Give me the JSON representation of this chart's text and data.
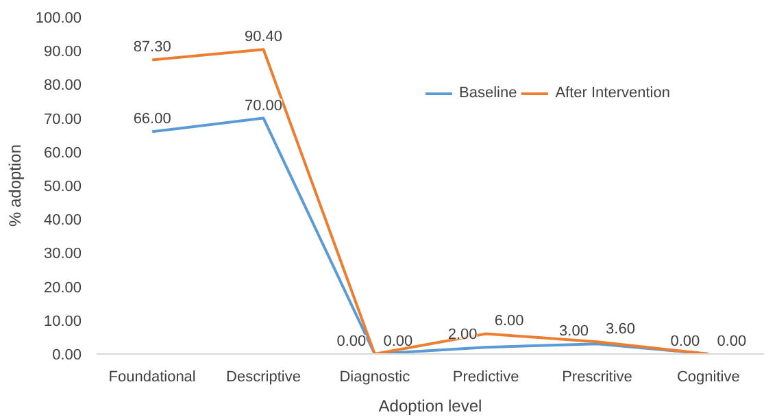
{
  "chart_data": {
    "type": "line",
    "xlabel": "Adoption level",
    "ylabel": "% adoption",
    "categories": [
      "Foundational",
      "Descriptive",
      "Diagnostic",
      "Predictive",
      "Prescritive",
      "Cognitive"
    ],
    "series": [
      {
        "name": "Baseline",
        "color": "#5b9bd5",
        "values": [
          66,
          70,
          0,
          2,
          3,
          0
        ],
        "value_labels": [
          "66.00",
          "70.00",
          "0.00",
          "2.00",
          "3.00",
          "0.00"
        ]
      },
      {
        "name": "After Intervention",
        "color": "#ed7d31",
        "values": [
          87.3,
          90.4,
          0,
          6,
          3.6,
          0
        ],
        "value_labels": [
          "87.30",
          "90.40",
          "0.00",
          "6.00",
          "3.60",
          "0.00"
        ]
      }
    ],
    "ylim": [
      0,
      100
    ],
    "yticks": [
      {
        "value": 0,
        "label": "0.00"
      },
      {
        "value": 10,
        "label": "10.00"
      },
      {
        "value": 20,
        "label": "20.00"
      },
      {
        "value": 30,
        "label": "30.00"
      },
      {
        "value": 40,
        "label": "40.00"
      },
      {
        "value": 50,
        "label": "50.00"
      },
      {
        "value": 60,
        "label": "60.00"
      },
      {
        "value": 70,
        "label": "70.00"
      },
      {
        "value": 80,
        "label": "80.00"
      },
      {
        "value": 90,
        "label": "90.00"
      },
      {
        "value": 100,
        "label": "100.00"
      }
    ],
    "grid": false,
    "legend": "top right",
    "marker": "none",
    "line_style": "solid"
  }
}
